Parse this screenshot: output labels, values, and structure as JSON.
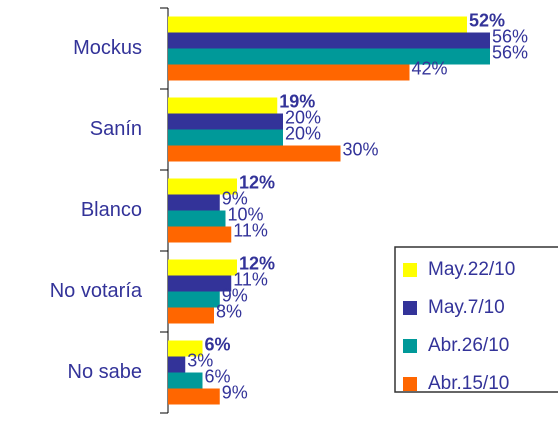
{
  "chart_data": {
    "type": "bar",
    "orientation": "horizontal",
    "categories": [
      "Mockus",
      "Sanín",
      "Blanco",
      "No votaría",
      "No sabe"
    ],
    "series": [
      {
        "name": "May.22/10",
        "color": "#ffff00",
        "values": [
          52,
          19,
          12,
          12,
          6
        ],
        "value_labels": [
          "52%",
          "19%",
          "12%",
          "12%",
          "6%"
        ]
      },
      {
        "name": "May.7/10",
        "color": "#333399",
        "values": [
          56,
          20,
          9,
          11,
          3
        ],
        "value_labels": [
          "56%",
          "20%",
          "9%",
          "11%",
          "3%"
        ]
      },
      {
        "name": "Abr.26/10",
        "color": "#009999",
        "values": [
          56,
          20,
          10,
          9,
          6
        ],
        "value_labels": [
          "56%",
          "20%",
          "10%",
          "9%",
          "6%"
        ]
      },
      {
        "name": "Abr.15/10",
        "color": "#ff6600",
        "values": [
          42,
          30,
          11,
          8,
          9
        ],
        "value_labels": [
          "42%",
          "30%",
          "11%",
          "8%",
          "9%"
        ]
      }
    ]
  }
}
